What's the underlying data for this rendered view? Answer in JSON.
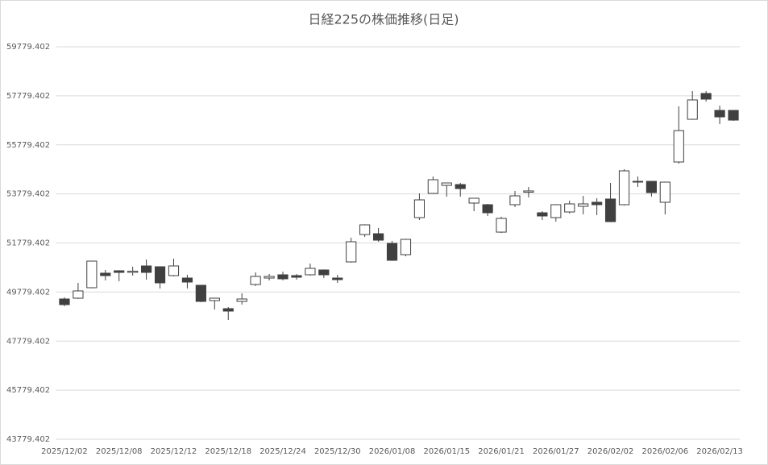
{
  "chart_data": {
    "type": "candlestick",
    "title": "日経225の株価推移(日足)",
    "categories": [
      "2025/12/02",
      null,
      null,
      null,
      "2025/12/08",
      null,
      null,
      null,
      "2025/12/12",
      null,
      null,
      null,
      "2025/12/18",
      null,
      null,
      null,
      "2025/12/24",
      null,
      null,
      null,
      "2025/12/30",
      null,
      null,
      null,
      "2026/01/08",
      null,
      null,
      null,
      "2026/01/15",
      null,
      null,
      null,
      "2026/01/21",
      null,
      null,
      null,
      "2026/01/27",
      null,
      null,
      null,
      "2026/02/02",
      null,
      null,
      null,
      "2026/02/06",
      null,
      null,
      null,
      "2026/02/13",
      null
    ],
    "open": [
      49496,
      49529,
      49956,
      50548,
      50646,
      50580,
      50843,
      50810,
      50449,
      50350,
      50055,
      49430,
      49102,
      49398,
      50087,
      50350,
      50482,
      50449,
      50482,
      50679,
      50350,
      51007,
      52124,
      52157,
      51763,
      51303,
      52814,
      53800,
      54128,
      54161,
      53406,
      53340,
      52222,
      53340,
      53850,
      53011,
      52814,
      53044,
      53274,
      53439,
      53570,
      53340,
      54293,
      54293,
      53438,
      55081,
      56822,
      57874,
      57184,
      57184
    ],
    "high": [
      49562,
      50153,
      51060,
      50679,
      50670,
      50810,
      51106,
      50830,
      51139,
      50482,
      50070,
      49540,
      49168,
      49726,
      50580,
      50515,
      50613,
      50515,
      50942,
      50700,
      50482,
      51993,
      52540,
      52387,
      51862,
      51950,
      53800,
      54490,
      54240,
      54227,
      53620,
      53373,
      52847,
      53898,
      54063,
      53077,
      53360,
      53504,
      53701,
      53603,
      54227,
      54785,
      54490,
      54310,
      54280,
      57348,
      57972,
      57972,
      57381,
      57200
    ],
    "low": [
      49201,
      49500,
      49930,
      50252,
      50219,
      50449,
      50285,
      49923,
      50420,
      49923,
      49365,
      49069,
      48642,
      49266,
      50020,
      50252,
      50252,
      50285,
      50450,
      50350,
      50153,
      50980,
      52026,
      51829,
      51050,
      51237,
      52716,
      53780,
      53669,
      53669,
      53077,
      52880,
      52190,
      53242,
      53636,
      52716,
      52650,
      52979,
      52946,
      52913,
      52630,
      53310,
      54063,
      53669,
      52946,
      55015,
      56800,
      57545,
      56625,
      56760
    ],
    "close": [
      49266,
      49825,
      51040,
      50449,
      50580,
      50630,
      50580,
      50153,
      50843,
      50186,
      49398,
      49529,
      49003,
      49496,
      50416,
      50416,
      50318,
      50383,
      50745,
      50482,
      50285,
      51829,
      52518,
      51894,
      51073,
      51927,
      53537,
      54358,
      54227,
      53997,
      53603,
      53011,
      52781,
      53701,
      53900,
      52880,
      53340,
      53373,
      53373,
      53340,
      52650,
      54720,
      54260,
      53833,
      54260,
      56362,
      57611,
      57644,
      56920,
      56789
    ],
    "up_color": "#ffffff",
    "down_color": "#404040",
    "edge_color": "#404040",
    "ylim": [
      43779.402,
      59779.402
    ],
    "yticks": [
      43779.402,
      45779.402,
      47779.402,
      49779.402,
      51779.402,
      53779.402,
      55779.402,
      57779.402,
      59779.402
    ],
    "grid": true
  }
}
